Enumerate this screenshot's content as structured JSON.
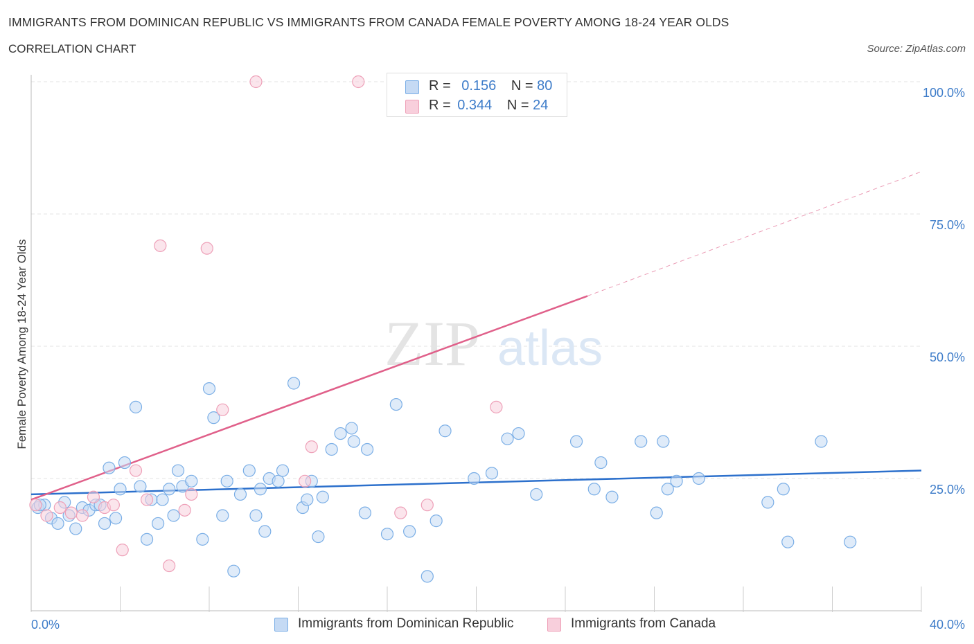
{
  "chart_data": {
    "type": "scatter",
    "title": "IMMIGRANTS FROM DOMINICAN REPUBLIC VS IMMIGRANTS FROM CANADA FEMALE POVERTY AMONG 18-24 YEAR OLDS",
    "subtitle": "CORRELATION CHART",
    "source": "Source: ZipAtlas.com",
    "ylabel": "Female Poverty Among 18-24 Year Olds",
    "xlim": [
      0,
      40
    ],
    "ylim": [
      0,
      100
    ],
    "x_ticks": [
      {
        "value": 0,
        "label": "0.0%"
      },
      {
        "value": 40,
        "label": "40.0%"
      }
    ],
    "y_ticks": [
      {
        "value": 25,
        "label": "25.0%"
      },
      {
        "value": 50,
        "label": "50.0%"
      },
      {
        "value": 75,
        "label": "75.0%"
      },
      {
        "value": 100,
        "label": "100.0%"
      }
    ],
    "watermark": "ZIPatlas",
    "legend": {
      "r_label": "R =",
      "n_label": "N =",
      "entries": [
        {
          "r": "0.156",
          "n": "80"
        },
        {
          "r": "0.344",
          "n": "24"
        }
      ]
    },
    "series": [
      {
        "name": "Immigrants from Dominican Republic",
        "color": "#7aaee6",
        "fill": "#c5daf4",
        "trend": {
          "x": [
            0,
            40
          ],
          "y": [
            22,
            26.5
          ],
          "color": "#2c70cc"
        },
        "points": [
          [
            0.3,
            19.5
          ],
          [
            0.6,
            20
          ],
          [
            0.9,
            17.5
          ],
          [
            1.2,
            16.5
          ],
          [
            1.5,
            20.5
          ],
          [
            1.7,
            18
          ],
          [
            2.0,
            15.5
          ],
          [
            2.3,
            19.5
          ],
          [
            2.6,
            19
          ],
          [
            2.9,
            20
          ],
          [
            3.1,
            20
          ],
          [
            3.3,
            16.5
          ],
          [
            3.5,
            27
          ],
          [
            3.8,
            17.5
          ],
          [
            4.0,
            23
          ],
          [
            4.2,
            28
          ],
          [
            4.7,
            38.5
          ],
          [
            4.9,
            23.5
          ],
          [
            5.2,
            13.5
          ],
          [
            5.4,
            21
          ],
          [
            5.7,
            16.5
          ],
          [
            5.9,
            21
          ],
          [
            6.2,
            23
          ],
          [
            6.4,
            18
          ],
          [
            6.6,
            26.5
          ],
          [
            6.8,
            23.5
          ],
          [
            7.2,
            24.5
          ],
          [
            7.7,
            13.5
          ],
          [
            8.0,
            42
          ],
          [
            8.2,
            36.5
          ],
          [
            8.6,
            18
          ],
          [
            8.8,
            24.5
          ],
          [
            9.1,
            7.5
          ],
          [
            9.4,
            22
          ],
          [
            9.8,
            26.5
          ],
          [
            10.1,
            18
          ],
          [
            10.3,
            23
          ],
          [
            10.5,
            15
          ],
          [
            10.7,
            25
          ],
          [
            11.1,
            24.5
          ],
          [
            11.3,
            26.5
          ],
          [
            11.8,
            43
          ],
          [
            12.2,
            19.5
          ],
          [
            12.4,
            21
          ],
          [
            12.6,
            24.5
          ],
          [
            12.9,
            14
          ],
          [
            13.1,
            21.5
          ],
          [
            13.5,
            30.5
          ],
          [
            13.9,
            33.5
          ],
          [
            14.4,
            34.5
          ],
          [
            14.5,
            32
          ],
          [
            15.0,
            18.5
          ],
          [
            15.1,
            30.5
          ],
          [
            16.0,
            14.5
          ],
          [
            16.4,
            39
          ],
          [
            17.0,
            15
          ],
          [
            17.8,
            6.5
          ],
          [
            18.2,
            17
          ],
          [
            18.6,
            34
          ],
          [
            19.9,
            25
          ],
          [
            20.7,
            26
          ],
          [
            21.4,
            32.5
          ],
          [
            21.9,
            33.5
          ],
          [
            22.7,
            22
          ],
          [
            24.5,
            32
          ],
          [
            25.3,
            23
          ],
          [
            25.6,
            28
          ],
          [
            26.1,
            21.5
          ],
          [
            27.4,
            32
          ],
          [
            28.1,
            18.5
          ],
          [
            28.4,
            32
          ],
          [
            28.6,
            23
          ],
          [
            29.0,
            24.5
          ],
          [
            30.0,
            25
          ],
          [
            33.1,
            20.5
          ],
          [
            33.8,
            23
          ],
          [
            34.0,
            13
          ],
          [
            35.5,
            32
          ],
          [
            36.8,
            13
          ],
          [
            0.4,
            20
          ]
        ]
      },
      {
        "name": "Immigrants from Canada",
        "color": "#eea0b8",
        "fill": "#f8cfdc",
        "trend": {
          "x": [
            0,
            25
          ],
          "y": [
            21,
            59.5
          ],
          "color": "#e0608a"
        },
        "trend_dashed": {
          "x": [
            25,
            40
          ],
          "y": [
            59.5,
            83
          ],
          "color": "#ea9ab4"
        },
        "points": [
          [
            0.2,
            20
          ],
          [
            0.7,
            18
          ],
          [
            1.3,
            19.5
          ],
          [
            1.8,
            18.5
          ],
          [
            2.3,
            18
          ],
          [
            2.8,
            21.5
          ],
          [
            3.3,
            19.5
          ],
          [
            3.7,
            20
          ],
          [
            4.1,
            11.5
          ],
          [
            4.7,
            26.5
          ],
          [
            5.2,
            21
          ],
          [
            5.8,
            69
          ],
          [
            6.2,
            8.5
          ],
          [
            6.9,
            19
          ],
          [
            7.2,
            22
          ],
          [
            7.9,
            68.5
          ],
          [
            8.6,
            38
          ],
          [
            10.1,
            100
          ],
          [
            12.3,
            24.5
          ],
          [
            12.6,
            31
          ],
          [
            14.7,
            100
          ],
          [
            16.6,
            18.5
          ],
          [
            17.8,
            20
          ],
          [
            20.9,
            38.5
          ]
        ]
      }
    ]
  },
  "bottom_legend": [
    "Immigrants from Dominican Republic",
    "Immigrants from Canada"
  ]
}
